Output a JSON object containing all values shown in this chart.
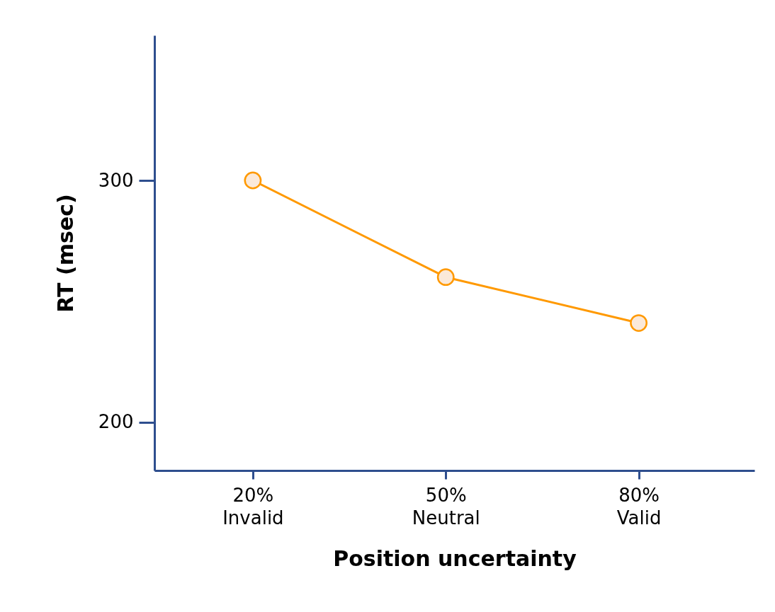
{
  "chart_data": {
    "type": "line",
    "xlabel": "Position uncertainty",
    "ylabel": "RT (msec)",
    "categories": [
      "20%\nInvalid",
      "50%\nNeutral",
      "80%\nValid"
    ],
    "series": [
      {
        "color": "#ff9900",
        "values": [
          300,
          260,
          241
        ]
      }
    ],
    "ylim": [
      180,
      360
    ],
    "yticks": [
      200,
      300
    ],
    "grid": false,
    "marker": "circle",
    "line_style": "solid"
  }
}
